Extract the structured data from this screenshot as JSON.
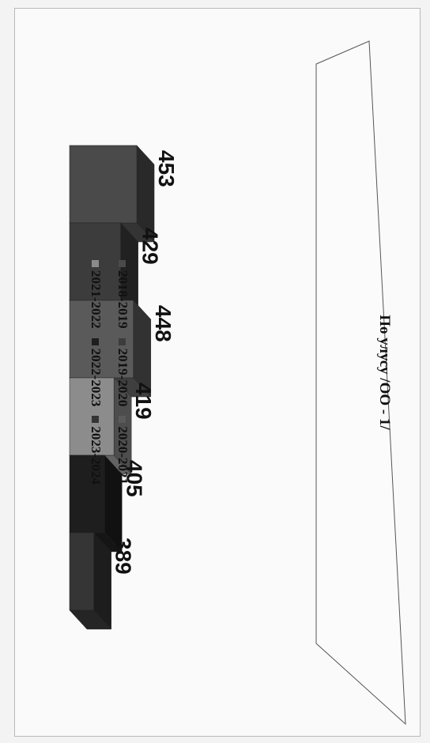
{
  "chart_data": {
    "type": "bar",
    "categories": [
      "По улусу /ОО - 1/"
    ],
    "series": [
      {
        "name": "2018-2019",
        "values": [
          453
        ],
        "color": "#4a4a4a"
      },
      {
        "name": "2019-2020",
        "values": [
          429
        ],
        "color": "#3c3c3c"
      },
      {
        "name": "2020-2021",
        "values": [
          448
        ],
        "color": "#5a5a5a"
      },
      {
        "name": "2021-2022",
        "values": [
          419
        ],
        "color": "#8c8c8c"
      },
      {
        "name": "2022-2023",
        "values": [
          405
        ],
        "color": "#1e1e1e"
      },
      {
        "name": "2023-2024",
        "values": [
          389
        ],
        "color": "#353535"
      }
    ],
    "legend_position": "top",
    "three_d": true,
    "grid": false
  }
}
